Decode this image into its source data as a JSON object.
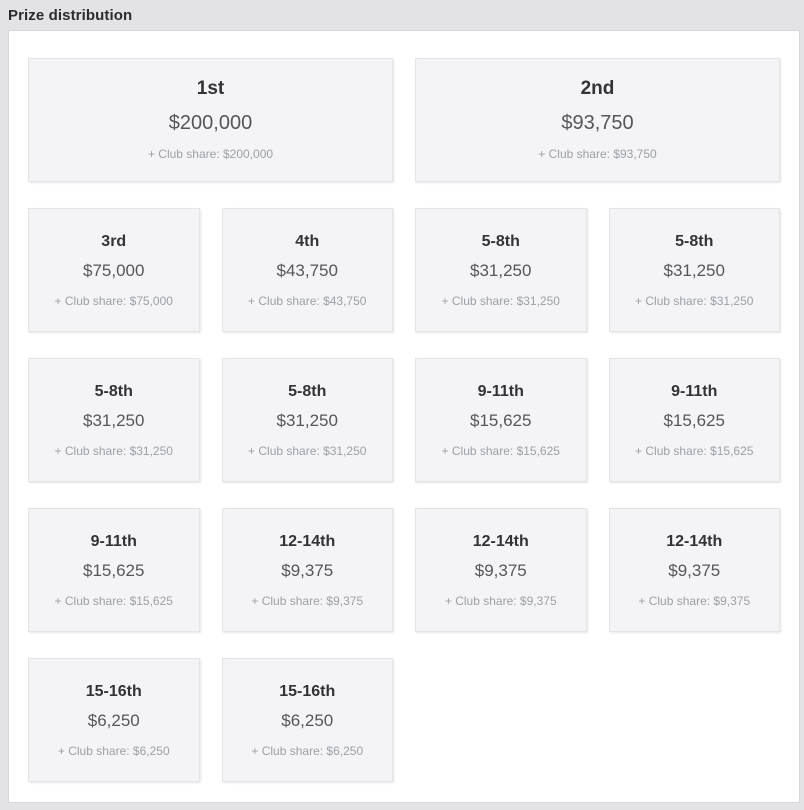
{
  "header": {
    "title": "Prize distribution"
  },
  "colors": {
    "page_bg": "#e3e3e5",
    "panel_bg": "#ffffff",
    "panel_border": "#d6d6d9",
    "card_bg": "#f4f4f6",
    "card_border": "#e4e4e7",
    "rank_text": "#333336",
    "amount_text": "#55565b",
    "club_text": "#9ba0a7"
  },
  "prizes": [
    {
      "rank": "1st",
      "amount": "$200,000",
      "club_share": "+ Club share: $200,000",
      "size": "large"
    },
    {
      "rank": "2nd",
      "amount": "$93,750",
      "club_share": "+ Club share: $93,750",
      "size": "large"
    },
    {
      "rank": "3rd",
      "amount": "$75,000",
      "club_share": "+ Club share: $75,000",
      "size": "small"
    },
    {
      "rank": "4th",
      "amount": "$43,750",
      "club_share": "+ Club share: $43,750",
      "size": "small"
    },
    {
      "rank": "5-8th",
      "amount": "$31,250",
      "club_share": "+ Club share: $31,250",
      "size": "small"
    },
    {
      "rank": "5-8th",
      "amount": "$31,250",
      "club_share": "+ Club share: $31,250",
      "size": "small"
    },
    {
      "rank": "5-8th",
      "amount": "$31,250",
      "club_share": "+ Club share: $31,250",
      "size": "small"
    },
    {
      "rank": "5-8th",
      "amount": "$31,250",
      "club_share": "+ Club share: $31,250",
      "size": "small"
    },
    {
      "rank": "9-11th",
      "amount": "$15,625",
      "club_share": "+ Club share: $15,625",
      "size": "small"
    },
    {
      "rank": "9-11th",
      "amount": "$15,625",
      "club_share": "+ Club share: $15,625",
      "size": "small"
    },
    {
      "rank": "9-11th",
      "amount": "$15,625",
      "club_share": "+ Club share: $15,625",
      "size": "small"
    },
    {
      "rank": "12-14th",
      "amount": "$9,375",
      "club_share": "+ Club share: $9,375",
      "size": "small"
    },
    {
      "rank": "12-14th",
      "amount": "$9,375",
      "club_share": "+ Club share: $9,375",
      "size": "small"
    },
    {
      "rank": "12-14th",
      "amount": "$9,375",
      "club_share": "+ Club share: $9,375",
      "size": "small"
    },
    {
      "rank": "15-16th",
      "amount": "$6,250",
      "club_share": "+ Club share: $6,250",
      "size": "small"
    },
    {
      "rank": "15-16th",
      "amount": "$6,250",
      "club_share": "+ Club share: $6,250",
      "size": "small"
    }
  ]
}
